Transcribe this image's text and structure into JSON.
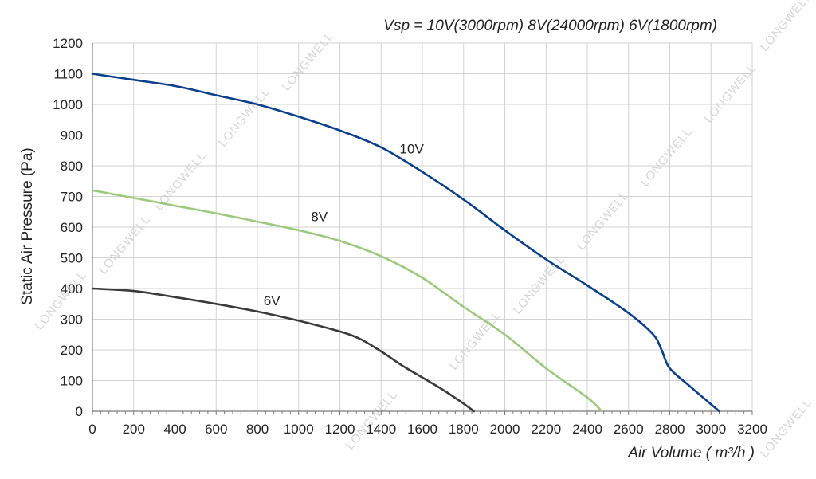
{
  "chart_data": {
    "type": "line",
    "header_note": "Vsp = 10V(3000rpm)  8V(24000rpm)   6V(1800rpm)",
    "xlabel": "Air Volume ( m³/h )",
    "ylabel": "Static Air Pressure  (Pa)",
    "xlim": [
      0,
      3200
    ],
    "ylim": [
      0,
      1200
    ],
    "xticks": [
      0,
      200,
      400,
      600,
      800,
      1000,
      1200,
      1400,
      1600,
      1800,
      2000,
      2200,
      2400,
      2600,
      2800,
      3000,
      3200
    ],
    "yticks": [
      0,
      100,
      200,
      300,
      400,
      500,
      600,
      700,
      800,
      900,
      1000,
      1100,
      1200
    ],
    "grid": true,
    "series": [
      {
        "name": "10V",
        "color": "#0b3f8c",
        "x": [
          0,
          200,
          400,
          600,
          800,
          1000,
          1200,
          1400,
          1600,
          1800,
          2000,
          2200,
          2400,
          2600,
          2720,
          2760,
          2800,
          2900,
          3040
        ],
        "y": [
          1100,
          1080,
          1060,
          1030,
          1000,
          960,
          915,
          860,
          780,
          690,
          590,
          495,
          410,
          320,
          250,
          200,
          140,
          80,
          0
        ]
      },
      {
        "name": "8V",
        "color": "#9dc97e",
        "x": [
          0,
          200,
          400,
          600,
          800,
          1000,
          1200,
          1400,
          1600,
          1800,
          2000,
          2200,
          2400,
          2470
        ],
        "y": [
          720,
          695,
          670,
          645,
          618,
          590,
          555,
          505,
          435,
          340,
          250,
          140,
          45,
          0
        ]
      },
      {
        "name": "6V",
        "color": "#3a3a3a",
        "x": [
          0,
          200,
          400,
          600,
          800,
          1000,
          1200,
          1300,
          1400,
          1500,
          1600,
          1700,
          1800,
          1850
        ],
        "y": [
          400,
          392,
          372,
          350,
          325,
          295,
          260,
          235,
          195,
          150,
          110,
          70,
          25,
          0
        ]
      }
    ],
    "annotations": [
      {
        "text": "10V",
        "x": 1490,
        "y": 840
      },
      {
        "text": "8V",
        "x": 1060,
        "y": 620
      },
      {
        "text": "6V",
        "x": 830,
        "y": 345
      }
    ]
  },
  "watermark_text": "LONGWELL"
}
